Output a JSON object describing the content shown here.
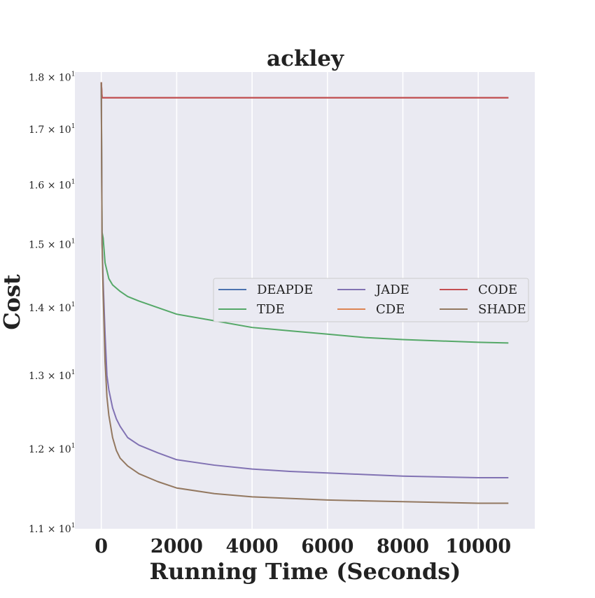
{
  "chart_data": {
    "type": "line",
    "title": "ackley",
    "xlabel": "Running Time (Seconds)",
    "ylabel": "Cost",
    "yscale": "log",
    "xlim": [
      -700,
      11500
    ],
    "ylim": [
      11.0,
      18.1
    ],
    "xticks": [
      0,
      2000,
      4000,
      6000,
      8000,
      10000
    ],
    "xtick_labels": [
      "0",
      "2000",
      "4000",
      "6000",
      "8000",
      "10000"
    ],
    "yticks": [
      {
        "value": 11,
        "label": "1.1 × 10",
        "exp": "1"
      },
      {
        "value": 12,
        "label": "1.2 × 10",
        "exp": "1"
      },
      {
        "value": 13,
        "label": "1.3 × 10",
        "exp": "1"
      },
      {
        "value": 14,
        "label": "1.4 × 10",
        "exp": "1"
      },
      {
        "value": 15,
        "label": "1.5 × 10",
        "exp": "1"
      },
      {
        "value": 16,
        "label": "1.6 × 10",
        "exp": "1"
      },
      {
        "value": 17,
        "label": "1.7 × 10",
        "exp": "1"
      },
      {
        "value": 18,
        "label": "1.8 × 10",
        "exp": "1"
      }
    ],
    "grid": true,
    "legend_position": "center-right",
    "series": [
      {
        "name": "DEAPDE",
        "color": "#4c72b0",
        "x": [
          0,
          20,
          40,
          10800
        ],
        "y": [
          17.9,
          17.6,
          17.6,
          17.6
        ]
      },
      {
        "name": "TDE",
        "color": "#55a868",
        "x": [
          0,
          20,
          50,
          100,
          200,
          300,
          500,
          700,
          1000,
          1500,
          2000,
          3000,
          4000,
          5000,
          6000,
          7000,
          8000,
          9000,
          10000,
          10800
        ],
        "y": [
          17.9,
          15.2,
          15.1,
          14.7,
          14.45,
          14.35,
          14.25,
          14.17,
          14.1,
          14.0,
          13.9,
          13.8,
          13.7,
          13.65,
          13.6,
          13.55,
          13.52,
          13.5,
          13.48,
          13.47
        ]
      },
      {
        "name": "JADE",
        "color": "#8172b3",
        "x": [
          0,
          20,
          50,
          100,
          150,
          200,
          300,
          400,
          500,
          700,
          1000,
          1500,
          2000,
          3000,
          4000,
          5000,
          6000,
          7000,
          8000,
          9000,
          10000,
          10800
        ],
        "y": [
          17.9,
          15.0,
          14.4,
          13.6,
          13.0,
          12.8,
          12.55,
          12.4,
          12.3,
          12.15,
          12.05,
          11.95,
          11.86,
          11.79,
          11.74,
          11.71,
          11.69,
          11.67,
          11.65,
          11.64,
          11.63,
          11.63
        ]
      },
      {
        "name": "CDE",
        "color": "#dd8452",
        "x": [
          0,
          20,
          40,
          10800
        ],
        "y": [
          17.9,
          17.6,
          17.6,
          17.6
        ]
      },
      {
        "name": "CODE",
        "color": "#c44e52",
        "x": [
          0,
          20,
          40,
          10800
        ],
        "y": [
          17.9,
          17.6,
          17.6,
          17.6
        ]
      },
      {
        "name": "SHADE",
        "color": "#937860",
        "x": [
          0,
          20,
          50,
          100,
          150,
          200,
          300,
          400,
          500,
          700,
          1000,
          1500,
          2000,
          3000,
          4000,
          5000,
          6000,
          7000,
          8000,
          9000,
          10000,
          10800
        ],
        "y": [
          17.9,
          15.0,
          14.2,
          13.2,
          12.7,
          12.45,
          12.15,
          11.98,
          11.88,
          11.78,
          11.68,
          11.58,
          11.5,
          11.43,
          11.39,
          11.37,
          11.35,
          11.34,
          11.33,
          11.32,
          11.31,
          11.31
        ]
      }
    ]
  }
}
